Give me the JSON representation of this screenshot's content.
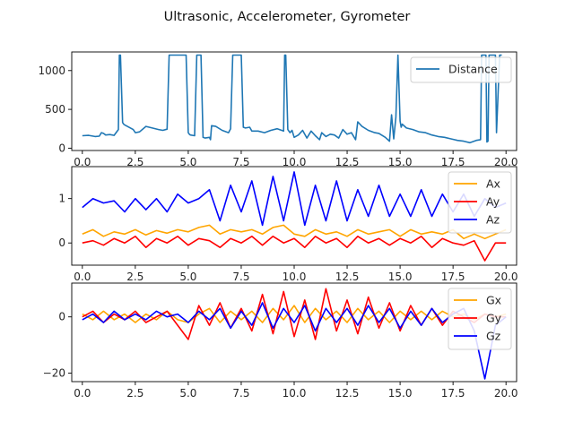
{
  "title": "Ultrasonic, Accelerometer, Gyrometer",
  "colors": {
    "distance": "#1f77b4",
    "x": "#ffa500",
    "y": "#ff0000",
    "z": "#0000ff"
  },
  "chart_data": [
    {
      "type": "line",
      "xlim": [
        -0.5,
        20.5
      ],
      "ylim": [
        -30,
        1240
      ],
      "xticks": [
        0.0,
        2.5,
        5.0,
        7.5,
        10.0,
        12.5,
        15.0,
        17.5,
        20.0
      ],
      "xtick_labels": [
        "0.0",
        "2.5",
        "5.0",
        "7.5",
        "10.0",
        "12.5",
        "15.0",
        "17.5",
        "20.0"
      ],
      "yticks": [
        0,
        500,
        1000
      ],
      "ytick_labels": [
        "0",
        "500",
        "1000"
      ],
      "legend_position": "top-right",
      "series": [
        {
          "name": "Distance",
          "color": "#1f77b4",
          "x": [
            0,
            0.3,
            0.6,
            0.8,
            0.9,
            1.0,
            1.1,
            1.3,
            1.5,
            1.7,
            1.75,
            1.8,
            1.9,
            1.95,
            2.0,
            2.4,
            2.5,
            2.7,
            3.0,
            3.3,
            3.6,
            3.8,
            4.0,
            4.1,
            4.2,
            4.4,
            4.7,
            4.9,
            5.0,
            5.05,
            5.1,
            5.3,
            5.4,
            5.6,
            5.7,
            5.8,
            6.0,
            6.05,
            6.1,
            6.3,
            6.6,
            6.9,
            7.0,
            7.1,
            7.4,
            7.5,
            7.6,
            7.7,
            7.9,
            8.0,
            8.3,
            8.6,
            8.9,
            9.2,
            9.5,
            9.55,
            9.6,
            9.7,
            9.8,
            9.9,
            10.0,
            10.2,
            10.4,
            10.6,
            10.8,
            11.0,
            11.2,
            11.3,
            11.5,
            11.7,
            11.9,
            12.1,
            12.3,
            12.5,
            12.7,
            12.9,
            13.0,
            13.2,
            13.5,
            13.8,
            14.0,
            14.3,
            14.5,
            14.6,
            14.7,
            14.8,
            14.9,
            15.0,
            15.05,
            15.1,
            15.3,
            15.6,
            15.9,
            16.2,
            16.5,
            16.8,
            17.1,
            17.4,
            17.7,
            18.0,
            18.3,
            18.6,
            18.8,
            18.85,
            18.9,
            19.05,
            19.1,
            19.15,
            19.2,
            19.3,
            19.45,
            19.5,
            19.55,
            19.7,
            19.75,
            19.8
          ],
          "y": [
            160,
            165,
            150,
            155,
            200,
            190,
            170,
            175,
            165,
            240,
            1200,
            1200,
            330,
            310,
            300,
            240,
            200,
            210,
            280,
            260,
            240,
            230,
            245,
            1200,
            1200,
            1200,
            1200,
            1200,
            200,
            180,
            170,
            160,
            1200,
            1200,
            140,
            130,
            140,
            110,
            290,
            280,
            230,
            200,
            250,
            1200,
            1200,
            1200,
            270,
            260,
            270,
            220,
            220,
            200,
            230,
            250,
            220,
            1200,
            1200,
            240,
            200,
            230,
            140,
            170,
            230,
            130,
            220,
            160,
            110,
            200,
            150,
            180,
            170,
            130,
            240,
            180,
            200,
            110,
            340,
            280,
            230,
            200,
            190,
            140,
            90,
            430,
            120,
            400,
            1200,
            350,
            270,
            310,
            260,
            240,
            210,
            200,
            170,
            150,
            140,
            120,
            100,
            90,
            70,
            100,
            110,
            1200,
            1200,
            1200,
            80,
            90,
            1200,
            1200,
            1200,
            1200,
            200,
            1200,
            1200,
            1200
          ]
        }
      ]
    },
    {
      "type": "line",
      "xlim": [
        -0.5,
        20.5
      ],
      "ylim": [
        -0.5,
        1.72
      ],
      "xticks": [
        0.0,
        2.5,
        5.0,
        7.5,
        10.0,
        12.5,
        15.0,
        17.5,
        20.0
      ],
      "xtick_labels": [
        "0.0",
        "2.5",
        "5.0",
        "7.5",
        "10.0",
        "12.5",
        "15.0",
        "17.5",
        "20.0"
      ],
      "yticks": [
        0,
        1
      ],
      "ytick_labels": [
        "0",
        "1"
      ],
      "legend_position": "top-right",
      "series": [
        {
          "name": "Ax",
          "color": "#ffa500",
          "x": [
            0,
            0.5,
            1,
            1.5,
            2,
            2.5,
            3,
            3.5,
            4,
            4.5,
            5,
            5.5,
            6,
            6.5,
            7,
            7.5,
            8,
            8.5,
            9,
            9.5,
            10,
            10.5,
            11,
            11.5,
            12,
            12.5,
            13,
            13.5,
            14,
            14.5,
            15,
            15.5,
            16,
            16.5,
            17,
            17.5,
            18,
            18.5,
            19,
            19.5,
            20
          ],
          "y": [
            0.2,
            0.3,
            0.15,
            0.25,
            0.2,
            0.3,
            0.18,
            0.28,
            0.22,
            0.3,
            0.25,
            0.35,
            0.4,
            0.2,
            0.3,
            0.25,
            0.3,
            0.2,
            0.35,
            0.4,
            0.2,
            0.15,
            0.3,
            0.2,
            0.25,
            0.15,
            0.3,
            0.2,
            0.25,
            0.3,
            0.15,
            0.3,
            0.2,
            0.25,
            0.2,
            0.3,
            0.1,
            0.2,
            0.1,
            0.2,
            0.3
          ]
        },
        {
          "name": "Ay",
          "color": "#ff0000",
          "x": [
            0,
            0.5,
            1,
            1.5,
            2,
            2.5,
            3,
            3.5,
            4,
            4.5,
            5,
            5.5,
            6,
            6.5,
            7,
            7.5,
            8,
            8.5,
            9,
            9.5,
            10,
            10.5,
            11,
            11.5,
            12,
            12.5,
            13,
            13.5,
            14,
            14.5,
            15,
            15.5,
            16,
            16.5,
            17,
            17.5,
            18,
            18.5,
            19,
            19.5,
            20
          ],
          "y": [
            0.0,
            0.05,
            -0.05,
            0.1,
            0.0,
            0.15,
            -0.1,
            0.1,
            0.0,
            0.15,
            -0.05,
            0.1,
            0.05,
            -0.1,
            0.1,
            0.0,
            0.15,
            -0.05,
            0.15,
            0.0,
            0.1,
            -0.1,
            0.15,
            0.0,
            0.1,
            -0.1,
            0.15,
            0.0,
            0.1,
            -0.05,
            0.1,
            0.0,
            0.15,
            -0.1,
            0.1,
            0.0,
            -0.05,
            0.05,
            -0.4,
            0.0,
            0.0
          ]
        },
        {
          "name": "Az",
          "color": "#0000ff",
          "x": [
            0,
            0.5,
            1,
            1.5,
            2,
            2.5,
            3,
            3.5,
            4,
            4.5,
            5,
            5.5,
            6,
            6.5,
            7,
            7.5,
            8,
            8.5,
            9,
            9.5,
            10,
            10.5,
            11,
            11.5,
            12,
            12.5,
            13,
            13.5,
            14,
            14.5,
            15,
            15.5,
            16,
            16.5,
            17,
            17.5,
            18,
            18.5,
            19,
            19.5,
            20
          ],
          "y": [
            0.8,
            1.0,
            0.9,
            0.95,
            0.7,
            1.0,
            0.75,
            1.0,
            0.7,
            1.1,
            0.9,
            1.0,
            1.2,
            0.5,
            1.3,
            0.7,
            1.4,
            0.4,
            1.5,
            0.5,
            1.6,
            0.4,
            1.3,
            0.5,
            1.4,
            0.5,
            1.2,
            0.6,
            1.3,
            0.6,
            1.1,
            0.6,
            1.2,
            0.6,
            1.1,
            0.7,
            1.1,
            0.6,
            1.0,
            0.8,
            0.9
          ]
        }
      ]
    },
    {
      "type": "line",
      "xlim": [
        -0.5,
        20.5
      ],
      "ylim": [
        -23,
        12
      ],
      "xticks": [
        0.0,
        2.5,
        5.0,
        7.5,
        10.0,
        12.5,
        15.0,
        17.5,
        20.0
      ],
      "xtick_labels": [
        "0.0",
        "2.5",
        "5.0",
        "7.5",
        "10.0",
        "12.5",
        "15.0",
        "17.5",
        "20.0"
      ],
      "yticks": [
        -20,
        0
      ],
      "ytick_labels": [
        "−20",
        "0"
      ],
      "legend_position": "top-right",
      "series": [
        {
          "name": "Gx",
          "color": "#ffa500",
          "x": [
            0,
            0.5,
            1,
            1.5,
            2,
            2.5,
            3,
            3.5,
            4,
            4.5,
            5,
            5.5,
            6,
            6.5,
            7,
            7.5,
            8,
            8.5,
            9,
            9.5,
            10,
            10.5,
            11,
            11.5,
            12,
            12.5,
            13,
            13.5,
            14,
            14.5,
            15,
            15.5,
            16,
            16.5,
            17,
            17.5,
            18,
            18.5,
            19,
            19.5,
            20
          ],
          "y": [
            1,
            -1,
            2,
            -1,
            1,
            -2,
            1,
            -1,
            2,
            -1,
            -2,
            1,
            3,
            -2,
            2,
            -1,
            2,
            -2,
            3,
            -1,
            4,
            -2,
            3,
            -1,
            2,
            -2,
            3,
            -1,
            2,
            -2,
            2,
            -1,
            2,
            -1,
            2,
            0,
            1,
            -1,
            1,
            0,
            1
          ]
        },
        {
          "name": "Gy",
          "color": "#ff0000",
          "x": [
            0,
            0.5,
            1,
            1.5,
            2,
            2.5,
            3,
            3.5,
            4,
            4.5,
            5,
            5.5,
            6,
            6.5,
            7,
            7.5,
            8,
            8.5,
            9,
            9.5,
            10,
            10.5,
            11,
            11.5,
            12,
            12.5,
            13,
            13.5,
            14,
            14.5,
            15,
            15.5,
            16,
            16.5,
            17,
            17.5,
            18,
            18.5,
            19,
            19.5,
            20
          ],
          "y": [
            0,
            2,
            -2,
            1,
            -1,
            2,
            -2,
            0,
            2,
            -3,
            -8,
            4,
            -3,
            5,
            -4,
            3,
            -5,
            8,
            -6,
            9,
            -7,
            6,
            -8,
            10,
            -5,
            6,
            -6,
            7,
            -4,
            5,
            -5,
            4,
            -3,
            3,
            -3,
            2,
            0,
            -2,
            1,
            0,
            0
          ]
        },
        {
          "name": "Gz",
          "color": "#0000ff",
          "x": [
            0,
            0.5,
            1,
            1.5,
            2,
            2.5,
            3,
            3.5,
            4,
            4.5,
            5,
            5.5,
            6,
            6.5,
            7,
            7.5,
            8,
            8.5,
            9,
            9.5,
            10,
            10.5,
            11,
            11.5,
            12,
            12.5,
            13,
            13.5,
            14,
            14.5,
            15,
            15.5,
            16,
            16.5,
            17,
            17.5,
            18,
            18.5,
            19,
            19.5,
            20
          ],
          "y": [
            -1,
            1,
            -2,
            2,
            -1,
            1,
            -1,
            2,
            0,
            1,
            -2,
            2,
            -1,
            3,
            -4,
            2,
            -3,
            5,
            -4,
            3,
            -2,
            4,
            -5,
            3,
            -2,
            3,
            -3,
            4,
            -2,
            3,
            -4,
            2,
            -3,
            3,
            -2,
            1,
            3,
            -5,
            -22,
            -3,
            0
          ]
        }
      ]
    }
  ]
}
